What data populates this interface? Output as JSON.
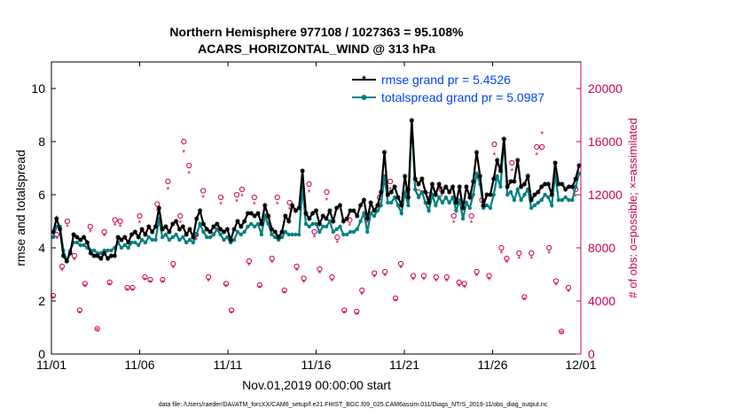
{
  "colors": {
    "rmse": "#000000",
    "spread": "#008080",
    "obs": "#cc0055",
    "legend_text": "#0044ee"
  },
  "chart_data": {
    "type": "line",
    "title_line1": "Northern Hemisphere 977108 / 1027363 = 95.108%",
    "title_line2": "ACARS_HORIZONTAL_WIND @ 313 hPa",
    "xlabel": "Nov.01,2019 00:00:00 start",
    "ylabel_left": "rmse and totalspread",
    "ylabel_right": "# of obs: o=possible; ×=assimilated",
    "footer": "data file: /Users/raeder/DAI/ATM_forcXX/CAM6_setup/f.e21.FHIST_BGC.f09_025.CAM6assim.011/Diags_NTrS_2019-11/obs_diag_output.nc",
    "xlim": [
      0,
      30
    ],
    "ylim_left": [
      0,
      11
    ],
    "ylim_right": [
      0,
      22000
    ],
    "x_ticks": [
      0,
      5,
      10,
      15,
      20,
      25,
      30
    ],
    "x_tick_labels": [
      "11/01",
      "11/06",
      "11/11",
      "11/16",
      "11/21",
      "11/26",
      "12/01"
    ],
    "y_left_ticks": [
      0,
      2,
      4,
      6,
      8,
      10
    ],
    "y_left_tick_labels": [
      "0",
      "2",
      "4",
      "6",
      "8",
      "10"
    ],
    "y_right_ticks": [
      0,
      4000,
      8000,
      12000,
      16000,
      20000
    ],
    "y_right_tick_labels": [
      "0",
      "4000",
      "8000",
      "12000",
      "16000",
      "20000"
    ],
    "legend": [
      {
        "key": "rmse",
        "label": "rmse grand pr = 5.4526"
      },
      {
        "key": "spread",
        "label": "totalspread grand pr = 5.0987"
      }
    ],
    "series": [
      {
        "name": "rmse",
        "values": [
          4.6,
          5.1,
          4.7,
          3.7,
          3.5,
          3.8,
          4.5,
          4.4,
          4.3,
          4.4,
          4.2,
          3.8,
          3.7,
          3.7,
          3.6,
          3.8,
          3.6,
          3.7,
          3.7,
          4.4,
          4.3,
          4.4,
          4.2,
          4.5,
          4.6,
          4.4,
          4.7,
          4.5,
          4.8,
          4.6,
          4.8,
          5.5,
          4.7,
          4.8,
          4.6,
          4.9,
          5.0,
          4.7,
          4.8,
          4.5,
          4.7,
          4.4,
          5.1,
          5.4,
          4.9,
          4.7,
          4.6,
          4.8,
          4.9,
          4.7,
          4.6,
          4.7,
          4.3,
          4.7,
          5.0,
          4.8,
          5.0,
          5.3,
          5.3,
          5.2,
          5.3,
          4.9,
          5.6,
          5.2,
          4.7,
          4.6,
          4.4,
          4.6,
          5.2,
          5.0,
          5.6,
          5.4,
          5.5,
          6.9,
          5.3,
          5.1,
          5.3,
          5.4,
          4.9,
          5.2,
          5.1,
          5.4,
          5.0,
          5.5,
          5.6,
          5.0,
          5.1,
          5.4,
          5.4,
          5.2,
          5.6,
          5.8,
          5.1,
          5.7,
          5.4,
          5.6,
          6.1,
          7.6,
          6.0,
          6.1,
          6.3,
          5.9,
          5.6,
          6.7,
          5.9,
          8.8,
          6.6,
          6.4,
          6.6,
          6.1,
          5.7,
          6.4,
          6.0,
          6.4,
          6.1,
          6.3,
          6.1,
          6.3,
          5.7,
          6.3,
          5.5,
          6.3,
          5.9,
          6.5,
          7.6,
          6.7,
          5.6,
          6.0,
          6.0,
          6.6,
          7.3,
          6.9,
          8.1,
          6.3,
          6.5,
          6.5,
          7.3,
          6.3,
          6.4,
          6.7,
          5.8,
          6.0,
          6.1,
          6.3,
          6.4,
          6.4,
          6.0,
          7.2,
          6.4,
          6.4,
          6.2,
          6.3,
          6.3,
          6.6,
          7.1
        ]
      },
      {
        "name": "totalspread",
        "values": [
          4.4,
          4.8,
          4.8,
          3.9,
          3.5,
          3.9,
          4.2,
          4.2,
          4.1,
          4.1,
          4.0,
          3.9,
          3.9,
          3.8,
          3.8,
          3.9,
          3.9,
          3.9,
          4.0,
          4.2,
          4.0,
          4.1,
          4.0,
          4.2,
          4.2,
          4.1,
          4.3,
          4.2,
          4.4,
          4.3,
          4.3,
          5.1,
          4.4,
          4.5,
          4.3,
          4.4,
          4.5,
          4.3,
          4.4,
          4.2,
          4.3,
          4.2,
          4.5,
          4.9,
          4.6,
          4.4,
          4.4,
          4.5,
          4.7,
          4.5,
          4.3,
          4.4,
          4.2,
          4.3,
          4.6,
          4.5,
          4.6,
          4.8,
          4.9,
          4.8,
          4.9,
          4.5,
          5.2,
          4.9,
          4.5,
          4.4,
          4.3,
          4.4,
          4.6,
          4.5,
          4.5,
          4.5,
          4.5,
          6.3,
          4.9,
          4.8,
          4.9,
          4.9,
          4.6,
          4.8,
          4.8,
          5.0,
          4.6,
          4.7,
          4.8,
          4.5,
          4.5,
          4.6,
          4.6,
          4.7,
          5.0,
          5.3,
          4.6,
          5.3,
          5.2,
          5.4,
          5.6,
          6.7,
          5.7,
          5.7,
          5.9,
          5.6,
          5.3,
          6.1,
          5.6,
          8.8,
          6.2,
          5.9,
          6.1,
          5.7,
          5.4,
          6.0,
          5.6,
          5.9,
          5.7,
          5.9,
          5.7,
          5.9,
          5.4,
          5.8,
          5.1,
          5.7,
          5.5,
          6.0,
          6.8,
          6.4,
          5.5,
          5.6,
          5.5,
          6.0,
          6.7,
          6.3,
          8.1,
          6.0,
          6.1,
          5.8,
          6.2,
          5.8,
          6.0,
          6.2,
          5.5,
          5.6,
          5.7,
          5.8,
          6.0,
          5.9,
          5.6,
          6.8,
          5.8,
          5.8,
          5.9,
          5.8,
          5.8,
          6.3,
          6.8
        ]
      }
    ],
    "obs_possible": [
      [
        0.1,
        4400
      ],
      [
        0.3,
        9000
      ],
      [
        0.6,
        6600
      ],
      [
        0.9,
        10000
      ],
      [
        1.3,
        7400
      ],
      [
        1.6,
        3300
      ],
      [
        1.9,
        5300
      ],
      [
        2.2,
        9600
      ],
      [
        2.6,
        1900
      ],
      [
        3.0,
        9200
      ],
      [
        3.3,
        5400
      ],
      [
        3.6,
        10100
      ],
      [
        3.9,
        10000
      ],
      [
        4.3,
        5000
      ],
      [
        4.6,
        5000
      ],
      [
        5.0,
        10400
      ],
      [
        5.3,
        5800
      ],
      [
        5.6,
        5600
      ],
      [
        6.0,
        11300
      ],
      [
        6.3,
        5600
      ],
      [
        6.6,
        13000
      ],
      [
        6.9,
        6800
      ],
      [
        7.3,
        10400
      ],
      [
        7.5,
        16000
      ],
      [
        7.8,
        14200
      ],
      [
        8.2,
        9000
      ],
      [
        8.6,
        12300
      ],
      [
        8.9,
        5800
      ],
      [
        9.2,
        9300
      ],
      [
        9.6,
        11800
      ],
      [
        9.9,
        5300
      ],
      [
        10.2,
        3300
      ],
      [
        10.5,
        12000
      ],
      [
        10.8,
        12400
      ],
      [
        11.2,
        7000
      ],
      [
        11.5,
        11800
      ],
      [
        11.8,
        5200
      ],
      [
        12.2,
        10400
      ],
      [
        12.5,
        7200
      ],
      [
        12.8,
        11800
      ],
      [
        13.2,
        4800
      ],
      [
        13.5,
        11400
      ],
      [
        13.9,
        6600
      ],
      [
        14.3,
        5700
      ],
      [
        14.6,
        12800
      ],
      [
        14.9,
        9200
      ],
      [
        15.2,
        6400
      ],
      [
        15.6,
        12200
      ],
      [
        15.9,
        5800
      ],
      [
        16.2,
        8800
      ],
      [
        16.6,
        3300
      ],
      [
        16.9,
        10100
      ],
      [
        17.3,
        3200
      ],
      [
        17.6,
        4800
      ],
      [
        17.9,
        10400
      ],
      [
        18.3,
        6100
      ],
      [
        18.6,
        11800
      ],
      [
        18.9,
        6200
      ],
      [
        19.2,
        13000
      ],
      [
        19.5,
        4200
      ],
      [
        19.8,
        6800
      ],
      [
        20.2,
        12400
      ],
      [
        20.5,
        5900
      ],
      [
        20.8,
        12200
      ],
      [
        21.1,
        5900
      ],
      [
        21.4,
        12000
      ],
      [
        21.8,
        5800
      ],
      [
        22.1,
        12400
      ],
      [
        22.4,
        5800
      ],
      [
        22.8,
        10400
      ],
      [
        23.1,
        5400
      ],
      [
        23.4,
        5300
      ],
      [
        23.8,
        10400
      ],
      [
        24.1,
        6200
      ],
      [
        24.4,
        11600
      ],
      [
        24.8,
        5900
      ],
      [
        25.1,
        15800
      ],
      [
        25.5,
        8000
      ],
      [
        25.8,
        7200
      ],
      [
        26.1,
        14400
      ],
      [
        26.5,
        7600
      ],
      [
        26.8,
        4300
      ],
      [
        27.2,
        7600
      ],
      [
        27.5,
        15600
      ],
      [
        27.8,
        15600
      ],
      [
        28.2,
        8000
      ],
      [
        28.6,
        5500
      ],
      [
        28.9,
        1700
      ],
      [
        29.3,
        5000
      ],
      [
        29.7,
        12400
      ]
    ],
    "obs_assimilated": [
      [
        0.1,
        4200
      ],
      [
        0.3,
        8700
      ],
      [
        0.6,
        6300
      ],
      [
        0.9,
        9600
      ],
      [
        1.3,
        7100
      ],
      [
        1.6,
        3100
      ],
      [
        1.9,
        5100
      ],
      [
        2.2,
        9200
      ],
      [
        2.6,
        1800
      ],
      [
        3.0,
        8900
      ],
      [
        3.3,
        5200
      ],
      [
        3.6,
        9700
      ],
      [
        3.9,
        9600
      ],
      [
        4.3,
        4800
      ],
      [
        4.6,
        4800
      ],
      [
        5.0,
        9900
      ],
      [
        5.3,
        5600
      ],
      [
        5.6,
        5400
      ],
      [
        6.0,
        10800
      ],
      [
        6.3,
        5400
      ],
      [
        6.6,
        12400
      ],
      [
        6.9,
        6500
      ],
      [
        7.3,
        9900
      ],
      [
        7.5,
        15200
      ],
      [
        7.8,
        13600
      ],
      [
        8.2,
        8600
      ],
      [
        8.6,
        11800
      ],
      [
        8.9,
        5500
      ],
      [
        9.2,
        8900
      ],
      [
        9.6,
        11300
      ],
      [
        9.9,
        5100
      ],
      [
        10.2,
        3100
      ],
      [
        10.5,
        11500
      ],
      [
        10.8,
        11900
      ],
      [
        11.2,
        6700
      ],
      [
        11.5,
        11300
      ],
      [
        11.8,
        5000
      ],
      [
        12.2,
        9900
      ],
      [
        12.5,
        6900
      ],
      [
        12.8,
        11300
      ],
      [
        13.2,
        4600
      ],
      [
        13.5,
        10900
      ],
      [
        13.9,
        6300
      ],
      [
        14.3,
        5400
      ],
      [
        14.6,
        12200
      ],
      [
        14.9,
        8800
      ],
      [
        15.2,
        6100
      ],
      [
        15.6,
        11600
      ],
      [
        15.9,
        5500
      ],
      [
        16.2,
        8400
      ],
      [
        16.6,
        3100
      ],
      [
        16.9,
        9700
      ],
      [
        17.3,
        3000
      ],
      [
        17.6,
        4500
      ],
      [
        17.9,
        9900
      ],
      [
        18.3,
        5800
      ],
      [
        18.6,
        11300
      ],
      [
        18.9,
        5900
      ],
      [
        19.2,
        12400
      ],
      [
        19.5,
        4000
      ],
      [
        19.8,
        6500
      ],
      [
        20.2,
        11900
      ],
      [
        20.5,
        5600
      ],
      [
        20.8,
        11700
      ],
      [
        21.1,
        5600
      ],
      [
        21.4,
        11500
      ],
      [
        21.8,
        5500
      ],
      [
        22.1,
        11900
      ],
      [
        22.4,
        5500
      ],
      [
        22.8,
        9900
      ],
      [
        23.1,
        5100
      ],
      [
        23.4,
        5000
      ],
      [
        23.8,
        9900
      ],
      [
        24.1,
        5900
      ],
      [
        24.4,
        11100
      ],
      [
        24.8,
        5600
      ],
      [
        25.1,
        15000
      ],
      [
        25.5,
        7600
      ],
      [
        25.8,
        6900
      ],
      [
        26.1,
        13800
      ],
      [
        26.5,
        7200
      ],
      [
        26.8,
        4100
      ],
      [
        27.2,
        7200
      ],
      [
        27.5,
        15000
      ],
      [
        27.8,
        16600
      ],
      [
        28.2,
        7600
      ],
      [
        28.6,
        5200
      ],
      [
        28.9,
        1600
      ],
      [
        29.3,
        4700
      ],
      [
        29.7,
        11900
      ]
    ]
  }
}
